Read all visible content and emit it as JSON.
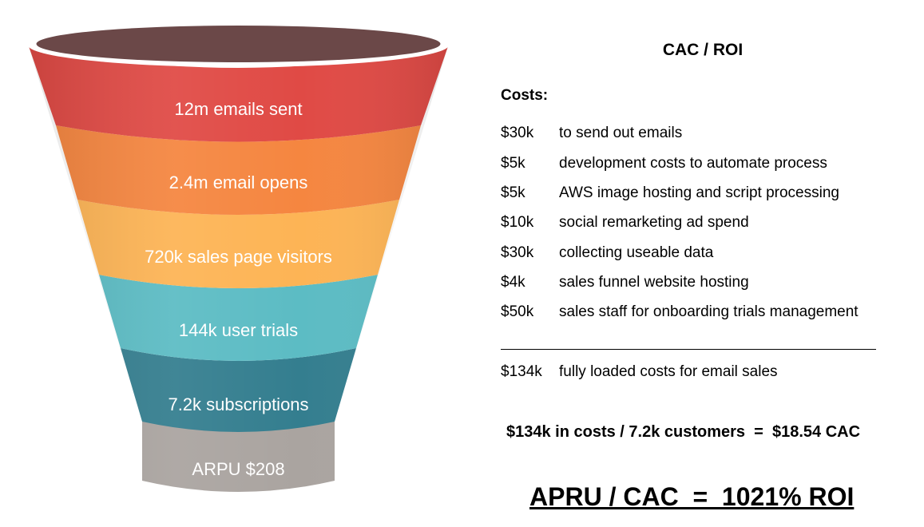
{
  "funnel": {
    "stages": [
      {
        "label": "12m emails sent",
        "color": "#e04a45"
      },
      {
        "label": "2.4m email opens",
        "color": "#f58640"
      },
      {
        "label": "720k sales page visitors",
        "color": "#fdb455"
      },
      {
        "label": "144k user trials",
        "color": "#5cbcc4"
      },
      {
        "label": "7.2k subscriptions",
        "color": "#347e8f"
      },
      {
        "label": "ARPU $208",
        "color": "#aaa4a0"
      }
    ],
    "rim_color": "#6b4848"
  },
  "summary": {
    "title": "CAC / ROI",
    "costs_heading": "Costs:",
    "costs": [
      {
        "amount": "$30k",
        "description": "to send out emails"
      },
      {
        "amount": "$5k",
        "description": "development costs to automate process"
      },
      {
        "amount": "$5k",
        "description": "AWS image hosting and script processing"
      },
      {
        "amount": "$10k",
        "description": "social remarketing ad spend"
      },
      {
        "amount": "$30k",
        "description": "collecting useable data"
      },
      {
        "amount": "$4k",
        "description": "sales funnel website hosting"
      },
      {
        "amount": "$50k",
        "description": "sales staff for onboarding trials management"
      }
    ],
    "total": {
      "amount": "$134k",
      "description": "fully loaded costs for email sales"
    },
    "cac_formula": "$134k in costs / 7.2k customers  =  $18.54 CAC",
    "roi_formula": "APRU / CAC  =  1021% ROI"
  }
}
